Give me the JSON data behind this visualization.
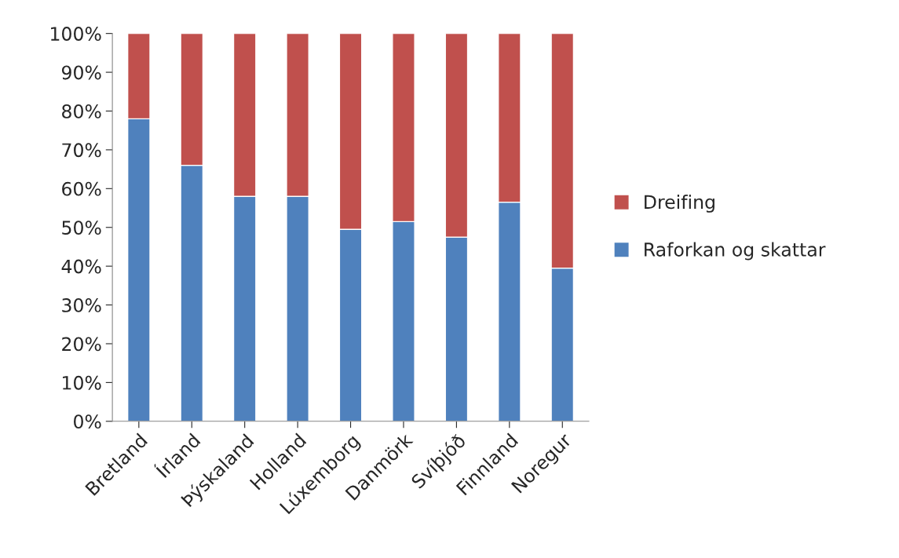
{
  "chart_data": {
    "type": "bar",
    "stacked": true,
    "categories": [
      "Bretland",
      "Írland",
      "Þýskaland",
      "Holland",
      "Lúxemborg",
      "Danmörk",
      "Svíþjóð",
      "Finnland",
      "Noregur"
    ],
    "series": [
      {
        "name": "Raforkan og skattar",
        "color": "#4f81bd",
        "values": [
          78,
          66,
          58,
          58,
          49.5,
          51.5,
          47.5,
          56.5,
          39.5
        ]
      },
      {
        "name": "Dreifing",
        "color": "#c0504d",
        "values": [
          22,
          34,
          42,
          42,
          50.5,
          48.5,
          52.5,
          43.5,
          60.5
        ]
      }
    ],
    "ylim": [
      0,
      100
    ],
    "yticks": [
      {
        "value": 0,
        "label": "0%"
      },
      {
        "value": 10,
        "label": "10%"
      },
      {
        "value": 20,
        "label": "20%"
      },
      {
        "value": 30,
        "label": "30%"
      },
      {
        "value": 40,
        "label": "40%"
      },
      {
        "value": 50,
        "label": "50%"
      },
      {
        "value": 60,
        "label": "60%"
      },
      {
        "value": 70,
        "label": "70%"
      },
      {
        "value": 80,
        "label": "80%"
      },
      {
        "value": 90,
        "label": "90%"
      },
      {
        "value": 100,
        "label": "100%"
      }
    ],
    "grid": false,
    "legend": "right"
  }
}
